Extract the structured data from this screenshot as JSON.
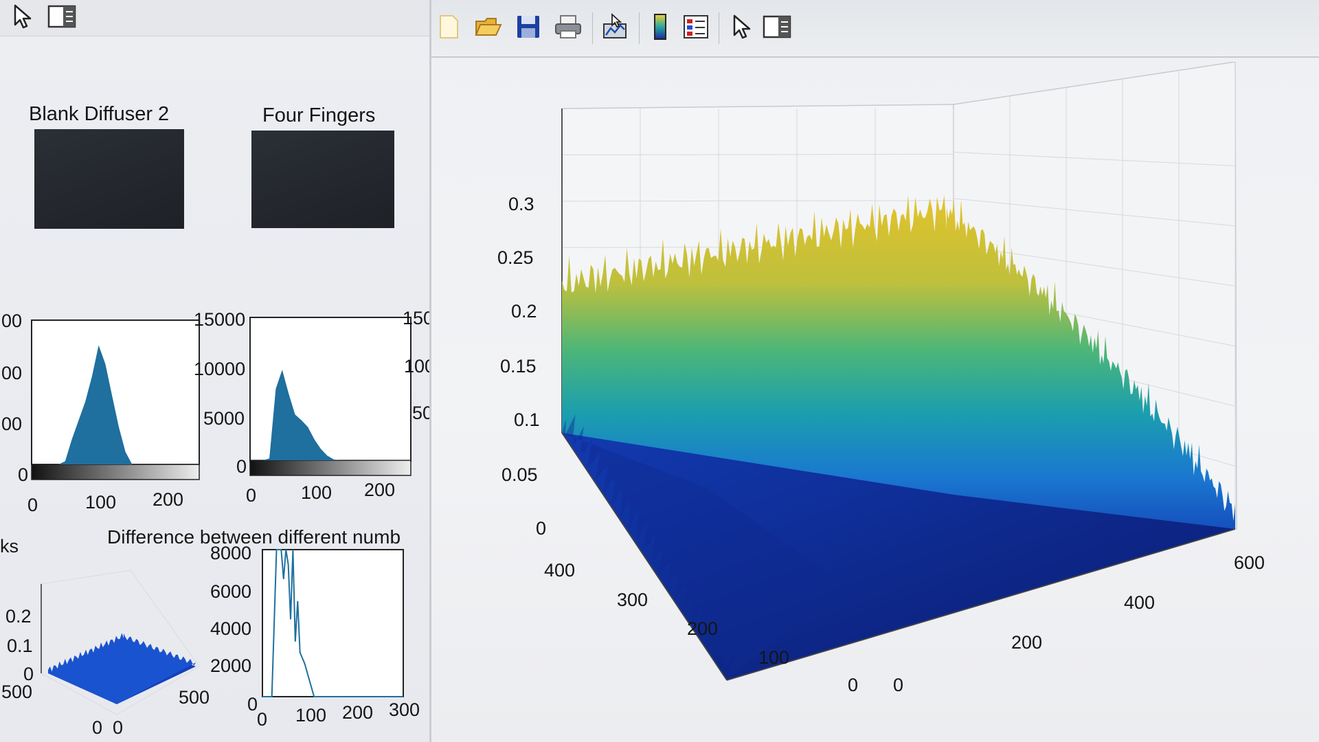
{
  "toolbar": {
    "buttons": [
      {
        "name": "new-figure-icon"
      },
      {
        "name": "open-file-icon"
      },
      {
        "name": "save-icon"
      },
      {
        "name": "print-icon"
      },
      {
        "name": "link-plot-icon"
      },
      {
        "name": "insert-colorbar-icon"
      },
      {
        "name": "insert-legend-icon"
      },
      {
        "name": "pointer-icon"
      },
      {
        "name": "property-inspector-icon"
      }
    ]
  },
  "left_toolbar": {
    "buttons": [
      {
        "name": "pointer-icon"
      },
      {
        "name": "property-inspector-icon"
      }
    ]
  },
  "images": [
    {
      "title": "Blank Diffuser 2"
    },
    {
      "title": "Four Fingers"
    }
  ],
  "histograms": [
    {
      "y_ticks": [
        "00",
        "00",
        "00",
        "0"
      ],
      "x_ticks": [
        "0",
        "100",
        "200"
      ]
    },
    {
      "y_ticks": [
        "15000",
        "10000",
        "5000",
        "0"
      ],
      "x_ticks": [
        "0",
        "100",
        "200"
      ],
      "right_ticks": [
        "150",
        "100",
        "50"
      ]
    }
  ],
  "small_surface": {
    "title_fragment": "ks",
    "z_ticks": [
      "0.2",
      "0.1",
      "0"
    ],
    "x_ticks": [
      "500",
      "0"
    ],
    "y_ticks": [
      "500",
      "0"
    ]
  },
  "line_plot": {
    "title": "Difference between different numb",
    "y_ticks": [
      "8000",
      "6000",
      "4000",
      "2000",
      "0"
    ],
    "x_ticks": [
      "0",
      "100",
      "200",
      "300"
    ]
  },
  "main_surface": {
    "z_ticks": [
      "0.3",
      "0.25",
      "0.2",
      "0.15",
      "0.1",
      "0.05",
      "0"
    ],
    "left_axis_ticks": [
      "400",
      "300",
      "200",
      "100",
      "0"
    ],
    "right_axis_ticks": [
      "0",
      "200",
      "400",
      "600"
    ]
  },
  "colors": {
    "colormap": [
      "#0c1a73",
      "#123fb8",
      "#1a7cd4",
      "#17a6a8",
      "#53bd72",
      "#c7c23a",
      "#e9c22c"
    ],
    "hist_fill": "#1f6f9f"
  },
  "chart_data": [
    {
      "type": "area",
      "title": "",
      "series": [
        {
          "values": [
            0,
            0,
            0,
            0,
            0,
            5,
            40,
            70,
            100,
            140,
            190,
            160,
            110,
            60,
            20,
            0,
            0,
            0,
            0,
            0,
            0,
            0,
            0,
            0,
            0,
            0
          ]
        }
      ],
      "x": [
        0,
        10,
        20,
        30,
        40,
        50,
        60,
        70,
        80,
        90,
        100,
        110,
        120,
        130,
        140,
        150,
        160,
        170,
        180,
        190,
        200,
        210,
        220,
        230,
        240,
        250
      ],
      "xlim": [
        0,
        250
      ],
      "grid": false
    },
    {
      "type": "area",
      "title": "",
      "series": [
        {
          "values": [
            0,
            0,
            0,
            200,
            7500,
            9500,
            7000,
            4800,
            4200,
            3500,
            2200,
            1200,
            500,
            100,
            0,
            0,
            0,
            0,
            0,
            0,
            0,
            0,
            0,
            0,
            0,
            0
          ]
        }
      ],
      "x": [
        0,
        10,
        20,
        30,
        40,
        50,
        60,
        70,
        80,
        90,
        100,
        110,
        120,
        130,
        140,
        150,
        160,
        170,
        180,
        190,
        200,
        210,
        220,
        230,
        240,
        250
      ],
      "ylim": [
        0,
        15000
      ],
      "xlim": [
        0,
        250
      ],
      "grid": false
    },
    {
      "type": "line",
      "title": "Difference between different numb",
      "series": [
        {
          "values": [
            0,
            0,
            8000,
            8000,
            6400,
            8000,
            7200,
            4200,
            8000,
            3000,
            5200,
            2400,
            1800,
            900,
            0,
            0,
            0,
            0,
            0,
            0,
            0,
            0
          ]
        }
      ],
      "x": [
        0,
        20,
        30,
        40,
        45,
        50,
        55,
        60,
        65,
        70,
        75,
        80,
        90,
        100,
        110,
        140,
        170,
        200,
        230,
        260,
        290,
        300
      ],
      "ylim": [
        0,
        8000
      ],
      "xlim": [
        0,
        300
      ],
      "grid": false
    },
    {
      "type": "heatmap",
      "title": "",
      "description_values": {
        "z_max": 0.28,
        "z_range": [
          0,
          0.3
        ],
        "x_range": [
          0,
          600
        ],
        "y_range": [
          0,
          400
        ]
      },
      "grid": true
    }
  ]
}
